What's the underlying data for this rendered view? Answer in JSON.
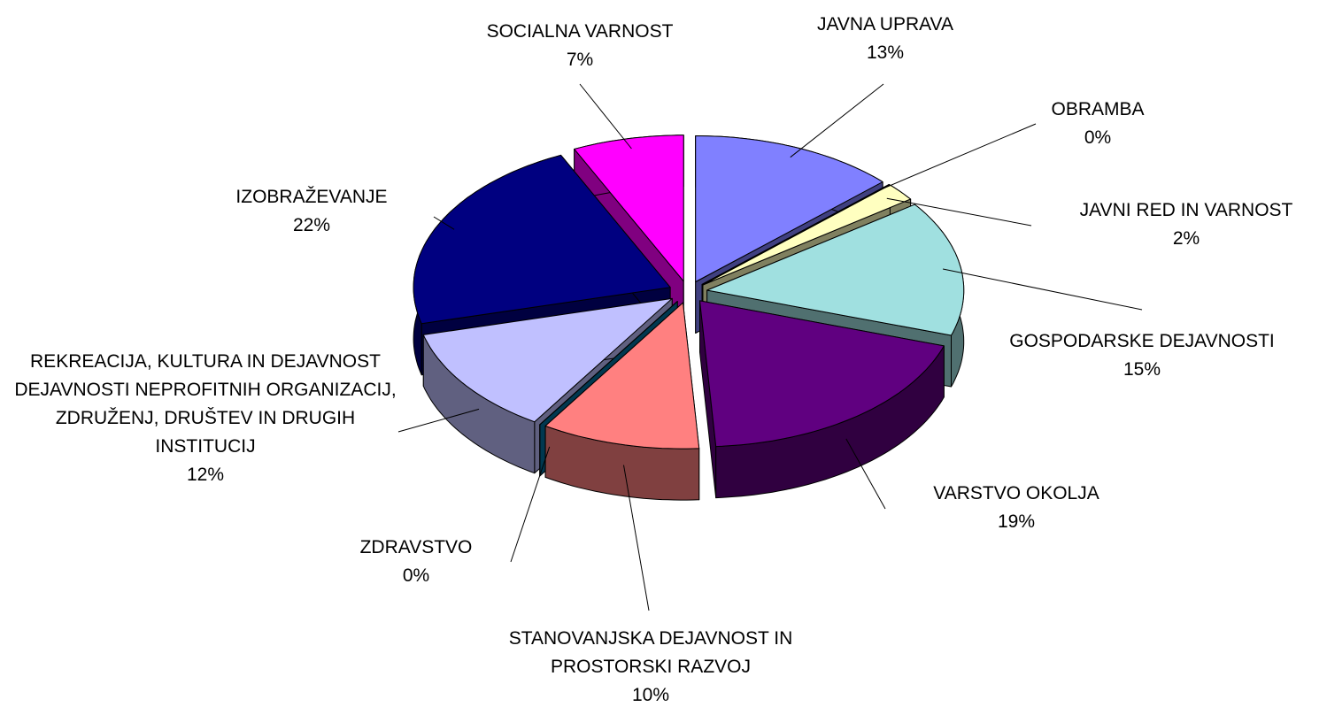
{
  "chart_data": {
    "type": "pie",
    "categories": [
      "JAVNA UPRAVA",
      "OBRAMBA",
      "JAVNI RED IN VARNOST",
      "GOSPODARSKE DEJAVNOSTI",
      "VARSTVO OKOLJA",
      "STANOVANJSKA DEJAVNOST IN PROSTORSKI RAZVOJ",
      "ZDRAVSTVO",
      "REKREACIJA, KULTURA IN DEJAVNOST DEJAVNOSTI NEPROFITNIH ORGANIZACIJ, ZDRUŽENJ, DRUŠTEV IN DRUGIH INSTITUCIJ",
      "IZOBRAŽEVANJE",
      "SOCIALNA VARNOST"
    ],
    "values": [
      13,
      0,
      2,
      15,
      19,
      10,
      0,
      12,
      22,
      7
    ],
    "value_labels": [
      "13%",
      "0%",
      "2%",
      "15%",
      "19%",
      "10%",
      "0%",
      "12%",
      "22%",
      "7%"
    ],
    "colors": [
      "#8080ff",
      "#803060",
      "#ffffc0",
      "#a0e0e0",
      "#600080",
      "#ff8080",
      "#0070a0",
      "#c0c0ff",
      "#000080",
      "#ff00ff"
    ]
  }
}
